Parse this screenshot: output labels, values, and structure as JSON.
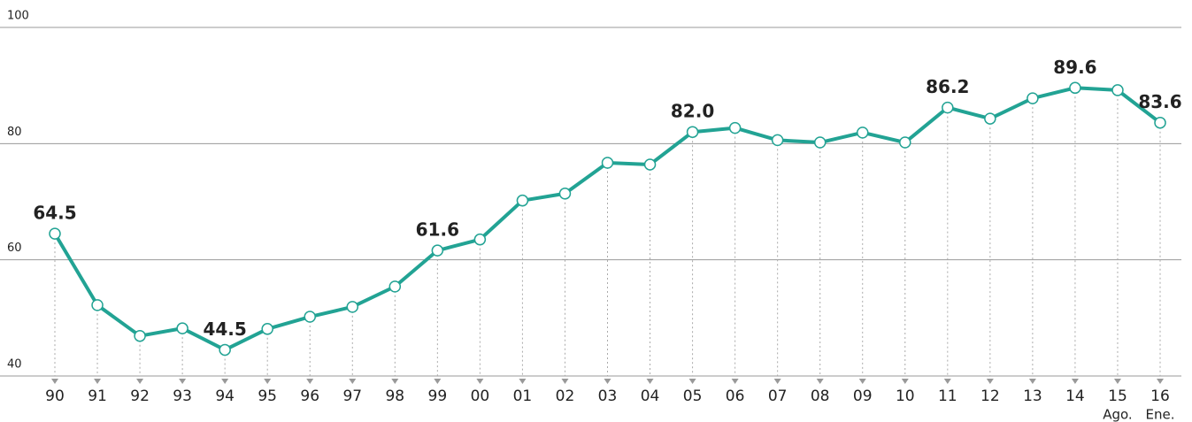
{
  "chart_data": {
    "type": "line",
    "categories": [
      "90",
      "91",
      "92",
      "93",
      "94",
      "95",
      "96",
      "97",
      "98",
      "99",
      "00",
      "01",
      "02",
      "03",
      "04",
      "05",
      "06",
      "07",
      "08",
      "09",
      "10",
      "11",
      "12",
      "13",
      "14",
      "15",
      "16"
    ],
    "x_sublabels": [
      null,
      null,
      null,
      null,
      null,
      null,
      null,
      null,
      null,
      null,
      null,
      null,
      null,
      null,
      null,
      null,
      null,
      null,
      null,
      null,
      null,
      null,
      null,
      null,
      null,
      "Ago.",
      "Ene."
    ],
    "series": [
      {
        "color": "#22a394",
        "values": [
          64.5,
          52.2,
          46.9,
          48.2,
          44.5,
          48.1,
          50.2,
          51.9,
          55.4,
          61.6,
          63.5,
          70.2,
          71.4,
          76.7,
          76.4,
          82.0,
          82.7,
          80.6,
          80.2,
          81.9,
          80.2,
          86.2,
          84.3,
          87.8,
          89.6,
          89.2,
          83.6
        ],
        "value_labels": [
          "64.5",
          null,
          null,
          null,
          "44.5",
          null,
          null,
          null,
          null,
          "61.6",
          null,
          null,
          null,
          null,
          null,
          "82.0",
          null,
          null,
          null,
          null,
          null,
          "86.2",
          null,
          null,
          "89.6",
          null,
          "83.6"
        ]
      }
    ],
    "ylim": [
      40,
      100
    ],
    "yticks": [
      40,
      60,
      80,
      100
    ],
    "grid": true
  }
}
